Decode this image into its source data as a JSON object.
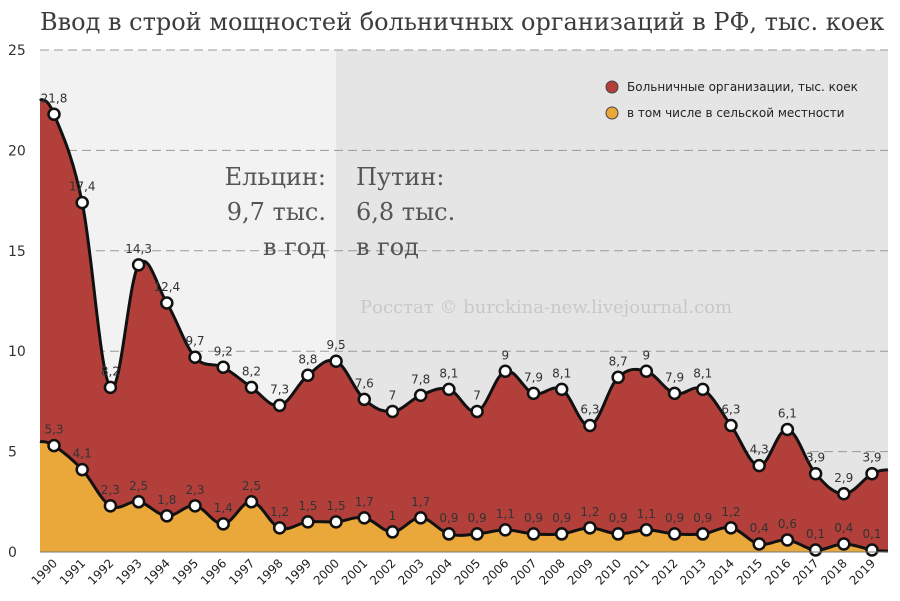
{
  "chart_data": {
    "type": "area",
    "title": "Ввод в строй мощностей больничных организаций в РФ, тыс. коек",
    "categories": [
      "1990",
      "1991",
      "1992",
      "1993",
      "1994",
      "1995",
      "1996",
      "1997",
      "1998",
      "1999",
      "2000",
      "2001",
      "2002",
      "2003",
      "2004",
      "2005",
      "2006",
      "2007",
      "2008",
      "2009",
      "2010",
      "2011",
      "2012",
      "2013",
      "2014",
      "2015",
      "2016",
      "2017",
      "2018",
      "2019"
    ],
    "series": [
      {
        "name": "Больничные организации, тыс. коек",
        "color": "#b23f3a",
        "values": [
          21.8,
          17.4,
          8.2,
          14.3,
          12.4,
          9.7,
          9.2,
          8.2,
          7.3,
          8.8,
          9.5,
          7.6,
          7,
          7.8,
          8.1,
          7,
          9,
          7.9,
          8.1,
          6.3,
          8.7,
          9,
          7.9,
          8.1,
          6.3,
          4.3,
          6.1,
          3.9,
          2.9,
          3.9
        ],
        "labels": [
          "21,8",
          "17,4",
          "8,2",
          "14,3",
          "12,4",
          "9,7",
          "9,2",
          "8,2",
          "7,3",
          "8,8",
          "9,5",
          "7,6",
          "7",
          "7,8",
          "8,1",
          "7",
          "9",
          "7,9",
          "8,1",
          "6,3",
          "8,7",
          "9",
          "7,9",
          "8,1",
          "6,3",
          "4,3",
          "6,1",
          "3,9",
          "2,9",
          "3,9"
        ]
      },
      {
        "name": "в том числе в сельской местности",
        "color": "#eba83a",
        "values": [
          5.3,
          4.1,
          2.3,
          2.5,
          1.8,
          2.3,
          1.4,
          2.5,
          1.2,
          1.5,
          1.5,
          1.7,
          1,
          1.7,
          0.9,
          0.9,
          1.1,
          0.9,
          0.9,
          1.2,
          0.9,
          1.1,
          0.9,
          0.9,
          1.2,
          0.4,
          0.6,
          0.1,
          0.4,
          0.1
        ],
        "labels": [
          "5,3",
          "4,1",
          "2,3",
          "2,5",
          "1,8",
          "2,3",
          "1,4",
          "2,5",
          "1,2",
          "1,5",
          "1,5",
          "1,7",
          "1",
          "1,7",
          "0,9",
          "0,9",
          "1,1",
          "0,9",
          "0,9",
          "1,2",
          "0,9",
          "1,1",
          "0,9",
          "0,9",
          "1,2",
          "0,4",
          "0,6",
          "0,1",
          "0,4",
          "0,1"
        ]
      }
    ],
    "ylim": [
      0,
      25
    ],
    "yticks": [
      0,
      5,
      10,
      15,
      20,
      25
    ],
    "grid": true,
    "legend": "top-right",
    "annotations": {
      "yeltsin": [
        "Ельцин:",
        "9,7 тыс.",
        "в год"
      ],
      "putin": [
        "Путин:",
        "6,8 тыс.",
        "в год"
      ],
      "credit": "Росстат © burckina-new.livejournal.com"
    },
    "period_split_year": "2000",
    "colors": {
      "bg_left": "#f2f2f2",
      "bg_right": "#e5e5e5",
      "line": "#111111",
      "grid": "#999999"
    }
  }
}
